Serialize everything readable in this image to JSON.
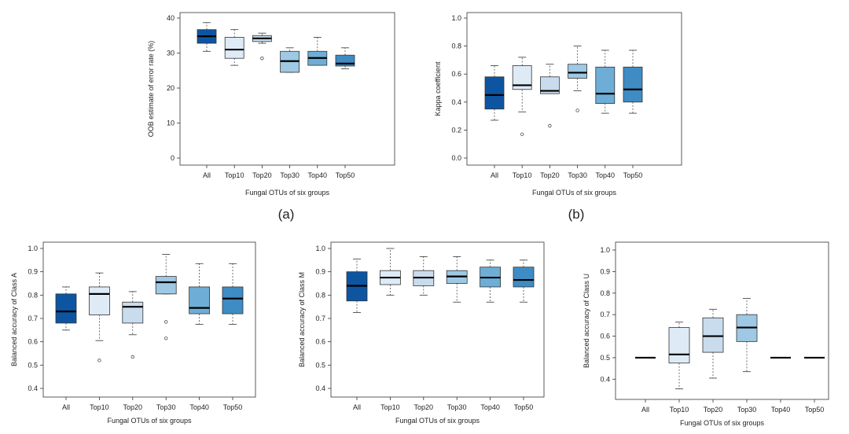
{
  "figure": {
    "panel_labels": [
      "(a)",
      "(b)"
    ],
    "colors": [
      "#0d55a1",
      "#deebf7",
      "#c9dcee",
      "#9ec8e3",
      "#6eaed6",
      "#3f8cc4"
    ]
  },
  "chart_data": [
    {
      "type": "box",
      "panel": "(a)",
      "xlabel": "Fungal OTUs of six groups",
      "ylabel": "OOB estimate of error rate (%)",
      "ylim": [
        0,
        40
      ],
      "yticks": [
        0,
        10,
        20,
        30,
        40
      ],
      "categories": [
        "All",
        "Top10",
        "Top20",
        "Top30",
        "Top40",
        "Top50"
      ],
      "boxes": [
        {
          "min": 30.5,
          "q1": 32.8,
          "median": 34.8,
          "q3": 36.7,
          "max": 38.7,
          "outliers": []
        },
        {
          "min": 26.5,
          "q1": 28.5,
          "median": 31.0,
          "q3": 34.5,
          "max": 36.7,
          "outliers": []
        },
        {
          "min": 32.8,
          "q1": 33.3,
          "median": 34.2,
          "q3": 35.0,
          "max": 35.7,
          "outliers": [
            28.5
          ]
        },
        {
          "min": 24.5,
          "q1": 24.5,
          "median": 27.7,
          "q3": 30.5,
          "max": 31.5,
          "outliers": []
        },
        {
          "min": 26.5,
          "q1": 26.5,
          "median": 28.6,
          "q3": 30.5,
          "max": 34.5,
          "outliers": []
        },
        {
          "min": 25.5,
          "q1": 26.3,
          "median": 27.0,
          "q3": 29.4,
          "max": 31.5,
          "outliers": []
        }
      ]
    },
    {
      "type": "box",
      "panel": "(b)",
      "xlabel": "Fungal OTUs of six groups",
      "ylabel": "Kappa coefficient",
      "ylim": [
        0,
        1
      ],
      "yticks": [
        "0.0",
        "0.2",
        "0.4",
        "0.6",
        "0.8",
        "1.0"
      ],
      "categories": [
        "All",
        "Top10",
        "Top20",
        "Top30",
        "Top40",
        "Top50"
      ],
      "boxes": [
        {
          "min": 0.27,
          "q1": 0.35,
          "median": 0.45,
          "q3": 0.58,
          "max": 0.66,
          "outliers": []
        },
        {
          "min": 0.33,
          "q1": 0.49,
          "median": 0.52,
          "q3": 0.66,
          "max": 0.72,
          "outliers": [
            0.17
          ]
        },
        {
          "min": 0.46,
          "q1": 0.46,
          "median": 0.48,
          "q3": 0.58,
          "max": 0.67,
          "outliers": [
            0.23
          ]
        },
        {
          "min": 0.48,
          "q1": 0.57,
          "median": 0.61,
          "q3": 0.67,
          "max": 0.8,
          "outliers": [
            0.34
          ]
        },
        {
          "min": 0.32,
          "q1": 0.39,
          "median": 0.46,
          "q3": 0.65,
          "max": 0.77,
          "outliers": []
        },
        {
          "min": 0.32,
          "q1": 0.4,
          "median": 0.49,
          "q3": 0.65,
          "max": 0.77,
          "outliers": []
        }
      ]
    },
    {
      "type": "box",
      "panel": "Class A",
      "xlabel": "Fungal OTUs of six groups",
      "ylabel": "Balanced accuracy of Class A",
      "ylim": [
        0.4,
        1.0
      ],
      "yticks": [
        "0.4",
        "0.5",
        "0.6",
        "0.7",
        "0.8",
        "0.9",
        "1.0"
      ],
      "categories": [
        "All",
        "Top10",
        "Top20",
        "Top30",
        "Top40",
        "Top50"
      ],
      "boxes": [
        {
          "min": 0.65,
          "q1": 0.68,
          "median": 0.73,
          "q3": 0.805,
          "max": 0.835,
          "outliers": []
        },
        {
          "min": 0.605,
          "q1": 0.715,
          "median": 0.805,
          "q3": 0.835,
          "max": 0.895,
          "outliers": [
            0.52
          ]
        },
        {
          "min": 0.63,
          "q1": 0.68,
          "median": 0.75,
          "q3": 0.77,
          "max": 0.815,
          "outliers": [
            0.535
          ]
        },
        {
          "min": 0.805,
          "q1": 0.805,
          "median": 0.855,
          "q3": 0.88,
          "max": 0.975,
          "outliers": [
            0.685,
            0.615
          ]
        },
        {
          "min": 0.675,
          "q1": 0.72,
          "median": 0.745,
          "q3": 0.835,
          "max": 0.935,
          "outliers": []
        },
        {
          "min": 0.675,
          "q1": 0.72,
          "median": 0.785,
          "q3": 0.835,
          "max": 0.935,
          "outliers": []
        }
      ]
    },
    {
      "type": "box",
      "panel": "Class M",
      "xlabel": "Fungal OTUs of six groups",
      "ylabel": "Balanced accuracy of Class M",
      "ylim": [
        0.4,
        1.0
      ],
      "yticks": [
        "0.4",
        "0.5",
        "0.6",
        "0.7",
        "0.8",
        "0.9",
        "1.0"
      ],
      "categories": [
        "All",
        "Top10",
        "Top20",
        "Top30",
        "Top40",
        "Top50"
      ],
      "boxes": [
        {
          "min": 0.725,
          "q1": 0.775,
          "median": 0.84,
          "q3": 0.9,
          "max": 0.955,
          "outliers": []
        },
        {
          "min": 0.8,
          "q1": 0.845,
          "median": 0.875,
          "q3": 0.905,
          "max": 1.0,
          "outliers": []
        },
        {
          "min": 0.8,
          "q1": 0.84,
          "median": 0.875,
          "q3": 0.905,
          "max": 0.965,
          "outliers": []
        },
        {
          "min": 0.77,
          "q1": 0.85,
          "median": 0.88,
          "q3": 0.905,
          "max": 0.965,
          "outliers": []
        },
        {
          "min": 0.77,
          "q1": 0.835,
          "median": 0.875,
          "q3": 0.92,
          "max": 0.95,
          "outliers": []
        },
        {
          "min": 0.77,
          "q1": 0.835,
          "median": 0.865,
          "q3": 0.92,
          "max": 0.95,
          "outliers": []
        }
      ]
    },
    {
      "type": "box",
      "panel": "Class U",
      "xlabel": "Fungal OTUs of six groups",
      "ylabel": "Balanced accuracy of Class U",
      "ylim": [
        0.35,
        1.0
      ],
      "yticks": [
        "0.4",
        "0.5",
        "0.6",
        "0.7",
        "0.8",
        "0.9",
        "1.0"
      ],
      "categories": [
        "All",
        "Top10",
        "Top20",
        "Top30",
        "Top40",
        "Top50"
      ],
      "boxes": [
        {
          "min": 0.5,
          "q1": 0.5,
          "median": 0.5,
          "q3": 0.5,
          "max": 0.5,
          "outliers": []
        },
        {
          "min": 0.355,
          "q1": 0.475,
          "median": 0.515,
          "q3": 0.64,
          "max": 0.665,
          "outliers": []
        },
        {
          "min": 0.405,
          "q1": 0.525,
          "median": 0.6,
          "q3": 0.685,
          "max": 0.725,
          "outliers": []
        },
        {
          "min": 0.435,
          "q1": 0.575,
          "median": 0.64,
          "q3": 0.7,
          "max": 0.775,
          "outliers": []
        },
        {
          "min": 0.5,
          "q1": 0.5,
          "median": 0.5,
          "q3": 0.5,
          "max": 0.5,
          "outliers": []
        },
        {
          "min": 0.5,
          "q1": 0.5,
          "median": 0.5,
          "q3": 0.5,
          "max": 0.5,
          "outliers": []
        }
      ]
    }
  ]
}
